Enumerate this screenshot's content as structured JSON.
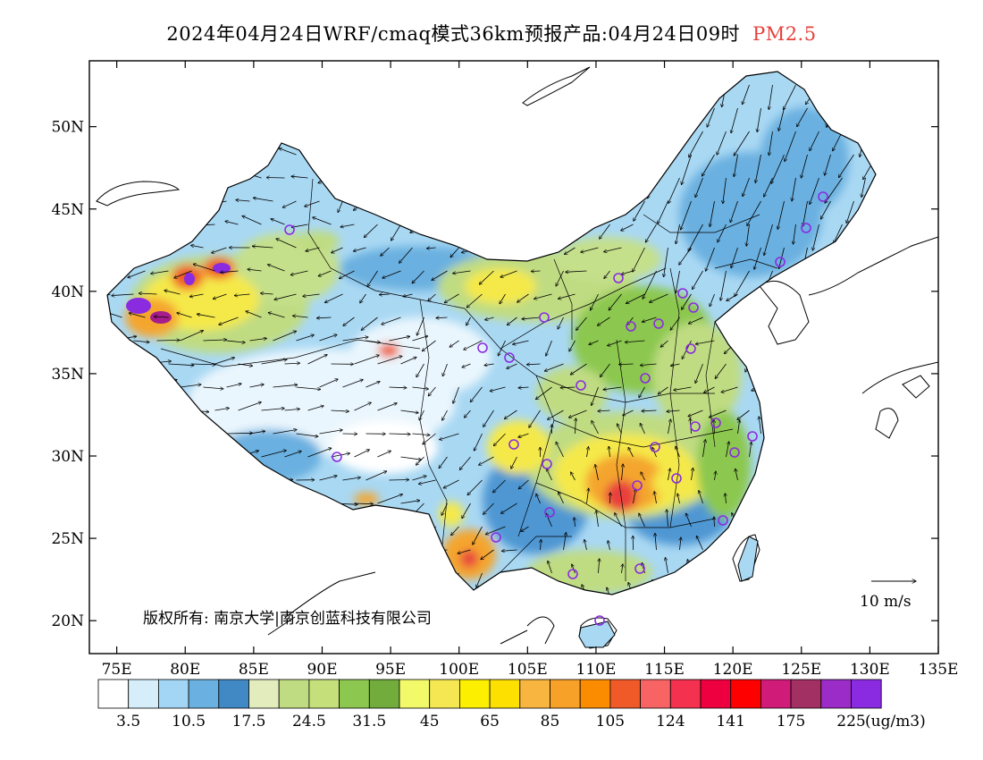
{
  "title": {
    "main": "2024年04月24日WRF/cmaq模式36km预报产品:04月24日09时",
    "pollutant": "PM2.5",
    "pollutant_color": "#e8403c"
  },
  "map": {
    "lon_range": [
      73,
      135
    ],
    "lat_range": [
      18,
      54
    ],
    "lat_ticks": [
      "20N",
      "25N",
      "30N",
      "35N",
      "40N",
      "45N",
      "50N"
    ],
    "lon_ticks": [
      "75E",
      "80E",
      "85E",
      "90E",
      "95E",
      "100E",
      "105E",
      "110E",
      "115E",
      "120E",
      "125E",
      "130E",
      "135E"
    ],
    "copyright": "版权所有: 南京大学|南京创蓝科技有限公司",
    "wind_scale": "10 m/s",
    "colors": {
      "low_blue": "#a9d8f3",
      "mid_blue": "#4f97d3",
      "light_green": "#c5e08b",
      "green": "#8cc84f",
      "yellow": "#f5e94a",
      "orange": "#f4a52d",
      "red": "#e8403c",
      "magenta": "#a61c8c",
      "purple": "#8b2be0",
      "city_marker": "#8b2be0"
    }
  },
  "colorbar": {
    "unit": "(ug/m3)",
    "labels": [
      "3.5",
      "10.5",
      "17.5",
      "24.5",
      "31.5",
      "45",
      "65",
      "85",
      "105",
      "124",
      "141",
      "175",
      "225"
    ],
    "colors": [
      "#ffffff",
      "#d6eefa",
      "#a3d6f5",
      "#6ab0e0",
      "#4089c4",
      "#e2ecbd",
      "#c0dc82",
      "#c5e07a",
      "#8cc84f",
      "#72ac3c",
      "#f2fa6a",
      "#f5e752",
      "#fcf000",
      "#fde000",
      "#f8b540",
      "#f8a128",
      "#fb8c00",
      "#f05a28",
      "#f86464",
      "#f43250",
      "#ee0040",
      "#ff0000",
      "#d01c78",
      "#a33062",
      "#9b2cc8",
      "#8a2be2"
    ]
  }
}
